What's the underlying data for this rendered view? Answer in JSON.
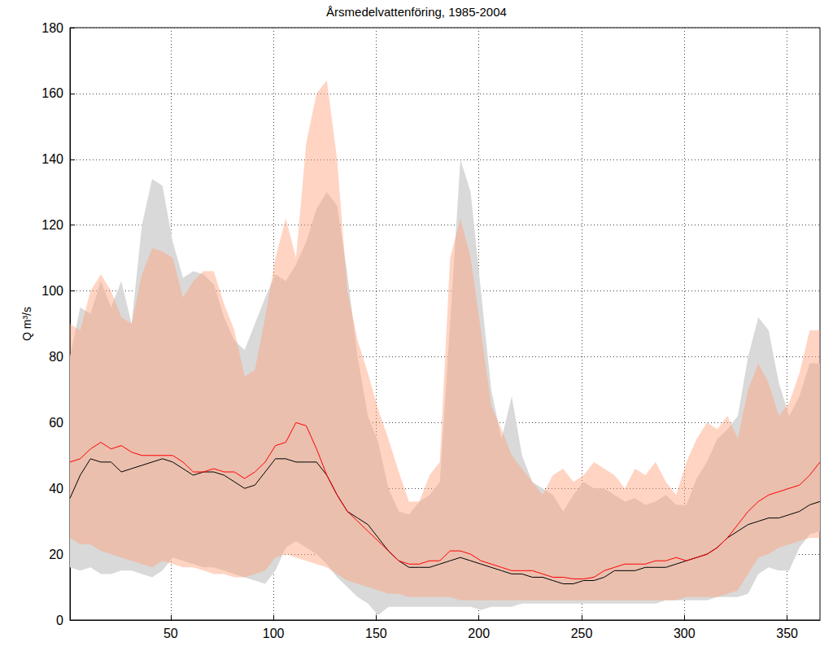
{
  "chart_data": {
    "type": "line",
    "title": "Årsmedelvattenföring, 1985-2004",
    "y_label": "Q m³/s",
    "x": [
      1,
      6,
      11,
      16,
      21,
      26,
      31,
      36,
      41,
      46,
      51,
      56,
      61,
      66,
      71,
      76,
      81,
      86,
      91,
      96,
      101,
      106,
      111,
      116,
      121,
      126,
      131,
      136,
      141,
      146,
      151,
      156,
      161,
      166,
      171,
      176,
      181,
      186,
      191,
      196,
      201,
      206,
      211,
      216,
      221,
      226,
      231,
      236,
      241,
      246,
      251,
      256,
      261,
      266,
      271,
      276,
      281,
      286,
      291,
      296,
      301,
      306,
      311,
      316,
      321,
      326,
      331,
      336,
      341,
      346,
      351,
      356,
      361,
      366
    ],
    "series": [
      {
        "type": "band",
        "color": "#d9d9d9",
        "lower": [
          16,
          15,
          16,
          14,
          14,
          15,
          15,
          14,
          13,
          15,
          19,
          18,
          17,
          16,
          16,
          15,
          14,
          13,
          12,
          11,
          15,
          22,
          24,
          22,
          20,
          17,
          13,
          10,
          7,
          5,
          1.5,
          4,
          4,
          4,
          4,
          4,
          4,
          4,
          4,
          4,
          3,
          4,
          4,
          4,
          5,
          5,
          5,
          5,
          5,
          5,
          5,
          5,
          5,
          5,
          5,
          5,
          5,
          5,
          6,
          6,
          6,
          6,
          6,
          7,
          7,
          7,
          8,
          14,
          16,
          15,
          15,
          22,
          26,
          27
        ],
        "upper": [
          80,
          95,
          93,
          103,
          95,
          103,
          90,
          120,
          134,
          132,
          115,
          104,
          106,
          105,
          102,
          92,
          85,
          82,
          90,
          98,
          105,
          103,
          108,
          115,
          125,
          130,
          126,
          105,
          80,
          62,
          54,
          40,
          33,
          32,
          36,
          38,
          42,
          90,
          140,
          130,
          100,
          70,
          55,
          68,
          50,
          42,
          40,
          38,
          33,
          38,
          42,
          40,
          40,
          38,
          36,
          37,
          35,
          36,
          38,
          35,
          35,
          43,
          48,
          55,
          58,
          62,
          80,
          92,
          88,
          72,
          62,
          68,
          78,
          78
        ]
      },
      {
        "type": "band",
        "color": "#ffa07a",
        "lower": [
          25,
          23,
          23,
          21,
          20,
          19,
          18,
          17,
          16,
          18,
          17,
          16,
          16,
          15,
          14,
          14,
          13,
          13,
          14,
          15,
          19,
          20,
          19,
          18,
          17,
          16,
          14,
          12,
          11,
          10,
          9,
          8,
          8,
          7,
          7,
          7,
          7,
          7,
          6,
          6,
          6,
          6,
          6,
          6,
          6,
          6,
          6,
          6,
          6,
          6,
          6,
          6,
          6,
          6,
          6,
          6,
          6,
          6,
          6,
          6,
          7,
          7,
          7,
          7,
          8,
          9,
          14,
          19,
          20,
          22,
          23,
          24,
          25,
          25
        ],
        "upper": [
          90,
          88,
          100,
          105,
          100,
          92,
          90,
          105,
          113,
          112,
          110,
          98,
          103,
          106,
          106,
          96,
          88,
          74,
          76,
          92,
          110,
          122,
          110,
          145,
          160,
          164,
          140,
          100,
          85,
          75,
          64,
          55,
          45,
          36,
          36,
          44,
          48,
          110,
          122,
          110,
          88,
          65,
          58,
          50,
          46,
          42,
          38,
          44,
          46,
          42,
          44,
          48,
          46,
          44,
          40,
          46,
          44,
          48,
          42,
          38,
          48,
          55,
          60,
          58,
          62,
          55,
          70,
          78,
          72,
          62,
          66,
          75,
          88,
          88
        ]
      },
      {
        "type": "line",
        "color": "#000000",
        "values": [
          37,
          44,
          49,
          48,
          48,
          45,
          46,
          47,
          48,
          49,
          48,
          46,
          44,
          45,
          45,
          44,
          42,
          40,
          41,
          45,
          49,
          49,
          48,
          48,
          48,
          44,
          38,
          33,
          31,
          29,
          25,
          21,
          18,
          16,
          16,
          16,
          17,
          18,
          19,
          18,
          17,
          16,
          15,
          14,
          14,
          13,
          13,
          12,
          11,
          11,
          12,
          12,
          13,
          15,
          15,
          15,
          16,
          16,
          16,
          17,
          18,
          19,
          20,
          22,
          25,
          27,
          29,
          30,
          31,
          31,
          32,
          33,
          35,
          36
        ]
      },
      {
        "type": "line",
        "color": "#ff0000",
        "values": [
          48,
          49,
          52,
          54,
          52,
          53,
          51,
          50,
          50,
          50,
          50,
          48,
          45,
          45,
          46,
          45,
          45,
          43,
          45,
          48,
          53,
          54,
          60,
          59,
          52,
          44,
          38,
          33,
          30,
          27,
          24,
          21,
          18,
          17,
          17,
          18,
          18,
          21,
          21,
          20,
          18,
          17,
          16,
          15,
          15,
          15,
          14,
          13,
          13,
          12.5,
          12.5,
          13,
          15,
          16,
          17,
          17,
          17,
          18,
          18,
          19,
          18,
          19,
          20,
          22,
          25,
          29,
          33,
          36,
          38,
          39,
          40,
          41,
          44,
          48
        ]
      }
    ],
    "xlim": [
      1,
      366
    ],
    "xticks": [
      50,
      100,
      150,
      200,
      250,
      300,
      350
    ],
    "ylim": [
      0,
      180
    ],
    "yticks": [
      0,
      20,
      40,
      60,
      80,
      100,
      120,
      140,
      160,
      180
    ],
    "grid": true
  }
}
